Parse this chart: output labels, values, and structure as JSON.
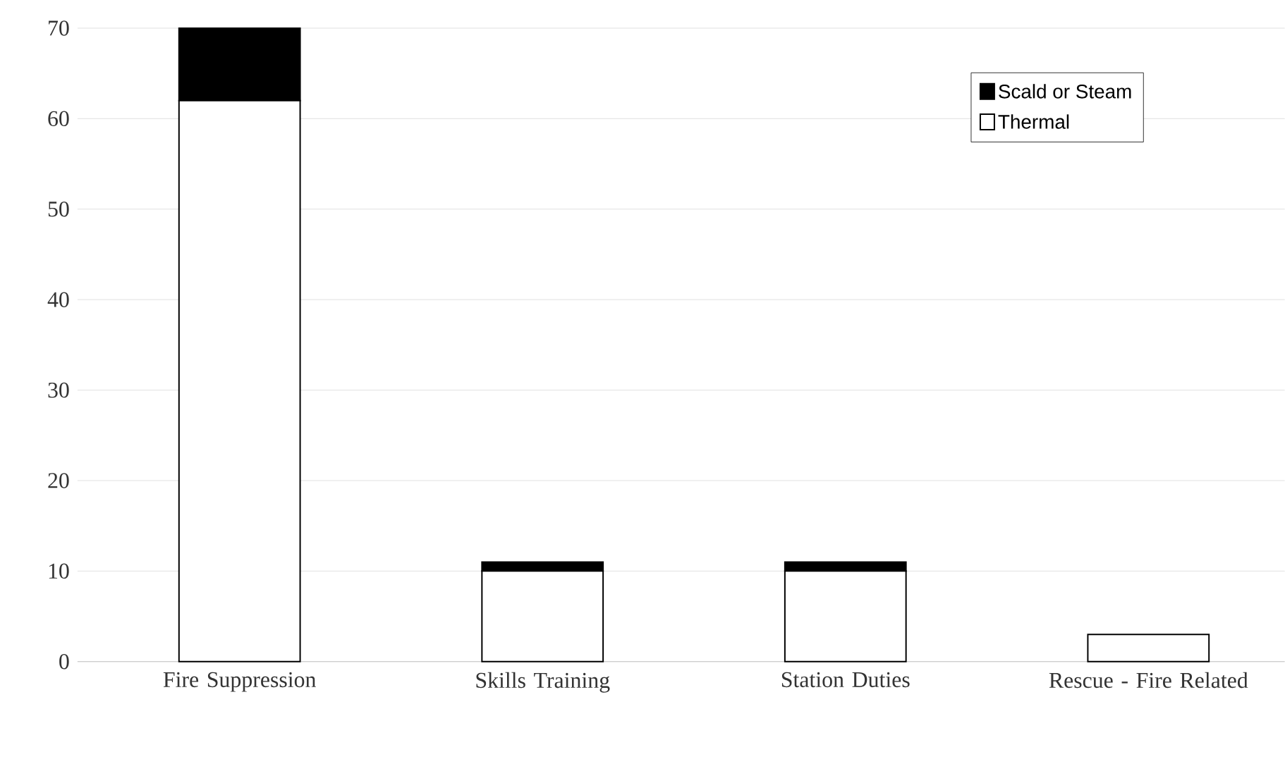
{
  "chart_data": {
    "type": "bar",
    "stacked": true,
    "categories": [
      "Fire Suppression",
      "Skills Training",
      "Station Duties",
      "Rescue - Fire Related"
    ],
    "series": [
      {
        "name": "Thermal",
        "color": "#ffffff",
        "values": [
          62,
          10,
          10,
          3
        ]
      },
      {
        "name": "Scald or Steam",
        "color": "#000000",
        "values": [
          8,
          1,
          1,
          0
        ]
      }
    ],
    "ylim": [
      0,
      70
    ],
    "yticks": [
      0,
      10,
      20,
      30,
      40,
      50,
      60,
      70
    ],
    "grid": "y",
    "legend": "top right"
  }
}
